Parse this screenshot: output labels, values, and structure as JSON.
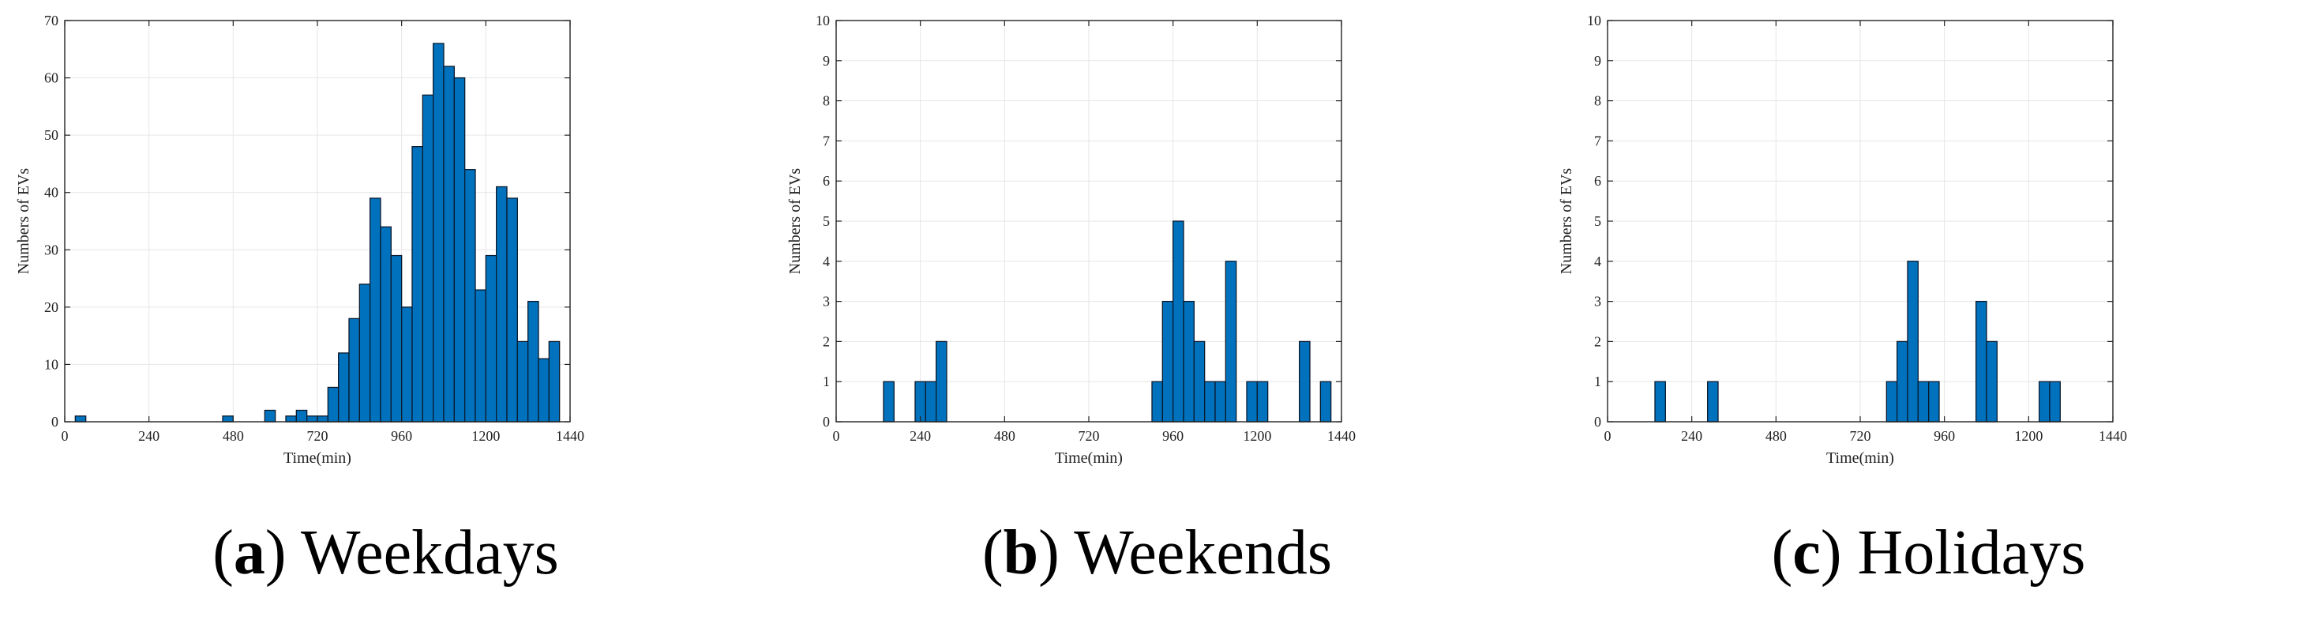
{
  "colors": {
    "bar": "#0072BD",
    "bar_edge": "#0b1a2e",
    "grid": "#e6e6e6",
    "axis": "#222222"
  },
  "chart_data": [
    {
      "type": "bar",
      "caption_letter": "a",
      "caption_text": "Weekdays",
      "xlabel": "Time(min)",
      "ylabel": "Numbers of EVs",
      "xlim": [
        0,
        1440
      ],
      "ylim": [
        0,
        70
      ],
      "xticks": [
        "0",
        "240",
        "480",
        "720",
        "960",
        "1200",
        "1440"
      ],
      "yticks": [
        "0",
        "10",
        "20",
        "30",
        "40",
        "50",
        "60",
        "70"
      ],
      "bin_width": 30,
      "grid": true,
      "bins": [
        {
          "x": 45,
          "y": 1
        },
        {
          "x": 465,
          "y": 1
        },
        {
          "x": 585,
          "y": 2
        },
        {
          "x": 645,
          "y": 1
        },
        {
          "x": 675,
          "y": 2
        },
        {
          "x": 705,
          "y": 1
        },
        {
          "x": 735,
          "y": 1
        },
        {
          "x": 765,
          "y": 6
        },
        {
          "x": 795,
          "y": 12
        },
        {
          "x": 825,
          "y": 18
        },
        {
          "x": 855,
          "y": 24
        },
        {
          "x": 885,
          "y": 39
        },
        {
          "x": 915,
          "y": 34
        },
        {
          "x": 945,
          "y": 29
        },
        {
          "x": 975,
          "y": 20
        },
        {
          "x": 1005,
          "y": 48
        },
        {
          "x": 1035,
          "y": 57
        },
        {
          "x": 1065,
          "y": 66
        },
        {
          "x": 1095,
          "y": 62
        },
        {
          "x": 1125,
          "y": 60
        },
        {
          "x": 1155,
          "y": 44
        },
        {
          "x": 1185,
          "y": 23
        },
        {
          "x": 1215,
          "y": 29
        },
        {
          "x": 1245,
          "y": 41
        },
        {
          "x": 1275,
          "y": 39
        },
        {
          "x": 1305,
          "y": 14
        },
        {
          "x": 1335,
          "y": 21
        },
        {
          "x": 1365,
          "y": 11
        },
        {
          "x": 1395,
          "y": 14
        }
      ]
    },
    {
      "type": "bar",
      "caption_letter": "b",
      "caption_text": "Weekends",
      "xlabel": "Time(min)",
      "ylabel": "Numbers of EVs",
      "xlim": [
        0,
        1440
      ],
      "ylim": [
        0,
        10
      ],
      "xticks": [
        "0",
        "240",
        "480",
        "720",
        "960",
        "1200",
        "1440"
      ],
      "yticks": [
        "0",
        "1",
        "2",
        "3",
        "4",
        "5",
        "6",
        "7",
        "8",
        "9",
        "10"
      ],
      "bin_width": 30,
      "grid": true,
      "bins": [
        {
          "x": 150,
          "y": 1
        },
        {
          "x": 240,
          "y": 1
        },
        {
          "x": 270,
          "y": 1
        },
        {
          "x": 300,
          "y": 2
        },
        {
          "x": 915,
          "y": 1
        },
        {
          "x": 945,
          "y": 3
        },
        {
          "x": 975,
          "y": 5
        },
        {
          "x": 1005,
          "y": 3
        },
        {
          "x": 1035,
          "y": 2
        },
        {
          "x": 1065,
          "y": 1
        },
        {
          "x": 1095,
          "y": 1
        },
        {
          "x": 1125,
          "y": 4
        },
        {
          "x": 1185,
          "y": 1
        },
        {
          "x": 1215,
          "y": 1
        },
        {
          "x": 1335,
          "y": 2
        },
        {
          "x": 1395,
          "y": 1
        }
      ]
    },
    {
      "type": "bar",
      "caption_letter": "c",
      "caption_text": "Holidays",
      "xlabel": "Time(min)",
      "ylabel": "Numbers of EVs",
      "xlim": [
        0,
        1440
      ],
      "ylim": [
        0,
        10
      ],
      "xticks": [
        "0",
        "240",
        "480",
        "720",
        "960",
        "1200",
        "1440"
      ],
      "yticks": [
        "0",
        "1",
        "2",
        "3",
        "4",
        "5",
        "6",
        "7",
        "8",
        "9",
        "10"
      ],
      "bin_width": 30,
      "grid": true,
      "bins": [
        {
          "x": 150,
          "y": 1
        },
        {
          "x": 300,
          "y": 1
        },
        {
          "x": 810,
          "y": 1
        },
        {
          "x": 840,
          "y": 2
        },
        {
          "x": 870,
          "y": 4
        },
        {
          "x": 900,
          "y": 1
        },
        {
          "x": 930,
          "y": 1
        },
        {
          "x": 1065,
          "y": 3
        },
        {
          "x": 1095,
          "y": 2
        },
        {
          "x": 1245,
          "y": 1
        },
        {
          "x": 1275,
          "y": 1
        }
      ]
    }
  ]
}
